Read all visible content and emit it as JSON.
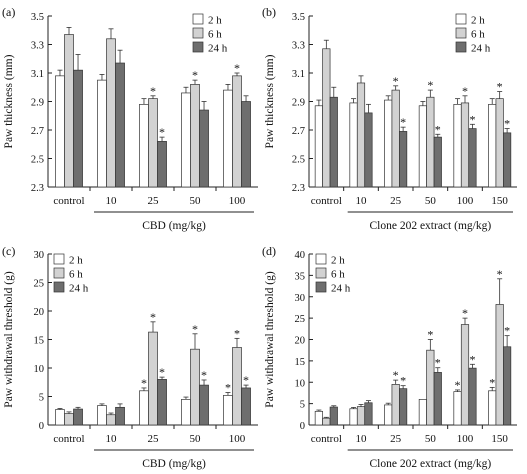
{
  "colors": {
    "2 h": "#ffffff",
    "6 h": "#d2d2d2",
    "24 h": "#6e6e6e",
    "axis": "#222222"
  },
  "chart_data": [
    {
      "panel_label": "(a)",
      "type": "bar",
      "ylabel": "Paw thickness (mm)",
      "xlabel": "CBD (mg/kg)",
      "ylim": [
        2.3,
        3.5
      ],
      "yticks": [
        "2.3",
        "2.5",
        "2.7",
        "2.9",
        "3.1",
        "3.3",
        "3.5"
      ],
      "categories": [
        "control",
        "10",
        "25",
        "50",
        "100"
      ],
      "legend": "top-right",
      "series": [
        {
          "name": "2 h",
          "values": [
            3.08,
            3.05,
            2.88,
            2.96,
            2.98
          ],
          "errors": [
            0.04,
            0.04,
            0.04,
            0.04,
            0.04
          ],
          "sig": [
            false,
            false,
            false,
            false,
            false
          ]
        },
        {
          "name": "6 h",
          "values": [
            3.37,
            3.34,
            2.92,
            3.02,
            3.08
          ],
          "errors": [
            0.05,
            0.07,
            0.02,
            0.03,
            0.02
          ],
          "sig": [
            false,
            false,
            true,
            true,
            true
          ]
        },
        {
          "name": "24 h",
          "values": [
            3.12,
            3.17,
            2.62,
            2.84,
            2.9
          ],
          "errors": [
            0.11,
            0.09,
            0.03,
            0.06,
            0.04
          ],
          "sig": [
            false,
            false,
            true,
            false,
            false
          ]
        }
      ]
    },
    {
      "panel_label": "(b)",
      "type": "bar",
      "ylabel": "Paw thickness (mm)",
      "xlabel": "Clone 202 extract (mg/kg)",
      "ylim": [
        2.3,
        3.5
      ],
      "yticks": [
        "2.3",
        "2.5",
        "2.7",
        "2.9",
        "3.1",
        "3.3",
        "3.5"
      ],
      "categories": [
        "control",
        "10",
        "25",
        "50",
        "100",
        "150"
      ],
      "legend": "top-right",
      "series": [
        {
          "name": "2 h",
          "values": [
            2.87,
            2.89,
            2.91,
            2.87,
            2.88,
            2.88
          ],
          "errors": [
            0.04,
            0.03,
            0.03,
            0.03,
            0.04,
            0.04
          ],
          "sig": [
            false,
            false,
            false,
            false,
            false,
            false
          ]
        },
        {
          "name": "6 h",
          "values": [
            3.27,
            3.03,
            2.98,
            2.93,
            2.89,
            2.92
          ],
          "errors": [
            0.06,
            0.05,
            0.03,
            0.05,
            0.05,
            0.05
          ],
          "sig": [
            false,
            false,
            true,
            true,
            true,
            true
          ]
        },
        {
          "name": "24 h",
          "values": [
            2.93,
            2.82,
            2.69,
            2.65,
            2.71,
            2.68
          ],
          "errors": [
            0.07,
            0.06,
            0.03,
            0.02,
            0.03,
            0.03
          ],
          "sig": [
            false,
            false,
            true,
            true,
            true,
            true
          ]
        }
      ]
    },
    {
      "panel_label": "(c)",
      "type": "bar",
      "ylabel": "Paw withdrawal threshold (g)",
      "xlabel": "CBD (mg/kg)",
      "ylim": [
        0,
        30
      ],
      "yticks": [
        "0",
        "5",
        "10",
        "15",
        "20",
        "25",
        "30"
      ],
      "categories": [
        "control",
        "10",
        "25",
        "50",
        "100"
      ],
      "legend": "top-left",
      "series": [
        {
          "name": "2 h",
          "values": [
            2.7,
            3.4,
            6.0,
            4.5,
            5.2
          ],
          "errors": [
            0.2,
            0.3,
            0.5,
            0.4,
            0.5
          ],
          "sig": [
            false,
            false,
            true,
            false,
            true
          ]
        },
        {
          "name": "6 h",
          "values": [
            2.0,
            1.8,
            16.3,
            13.3,
            13.6
          ],
          "errors": [
            0.3,
            0.3,
            1.8,
            2.7,
            1.6
          ],
          "sig": [
            false,
            false,
            true,
            true,
            true
          ]
        },
        {
          "name": "24 h",
          "values": [
            2.8,
            3.1,
            8.0,
            7.0,
            6.5
          ],
          "errors": [
            0.3,
            0.6,
            0.4,
            0.9,
            0.5
          ],
          "sig": [
            false,
            false,
            true,
            true,
            true
          ]
        }
      ]
    },
    {
      "panel_label": "(d)",
      "type": "bar",
      "ylabel": "Paw withdrawal threshold (g)",
      "xlabel": "Clone 202 extract (mg/kg)",
      "ylim": [
        0,
        40
      ],
      "yticks": [
        "0",
        "5",
        "10",
        "15",
        "20",
        "25",
        "30",
        "35",
        "40"
      ],
      "categories": [
        "control",
        "10",
        "25",
        "50",
        "100",
        "150"
      ],
      "legend": "top-left",
      "series": [
        {
          "name": "2 h",
          "values": [
            3.2,
            3.8,
            4.7,
            6.0,
            7.8,
            8.0
          ],
          "errors": [
            0.3,
            0.3,
            0.4,
            0.0,
            0.4,
            0.8
          ],
          "sig": [
            false,
            false,
            false,
            false,
            true,
            true
          ]
        },
        {
          "name": "6 h",
          "values": [
            1.6,
            4.3,
            9.5,
            17.5,
            23.5,
            28.2
          ],
          "errors": [
            0.2,
            0.5,
            1.0,
            2.5,
            1.5,
            6.0
          ],
          "sig": [
            false,
            false,
            true,
            true,
            true,
            true
          ]
        },
        {
          "name": "24 h",
          "values": [
            4.2,
            5.2,
            8.5,
            12.3,
            13.3,
            18.3
          ],
          "errors": [
            0.3,
            0.5,
            0.7,
            1.1,
            0.9,
            2.6
          ],
          "sig": [
            false,
            false,
            true,
            true,
            true,
            true
          ]
        }
      ]
    }
  ]
}
